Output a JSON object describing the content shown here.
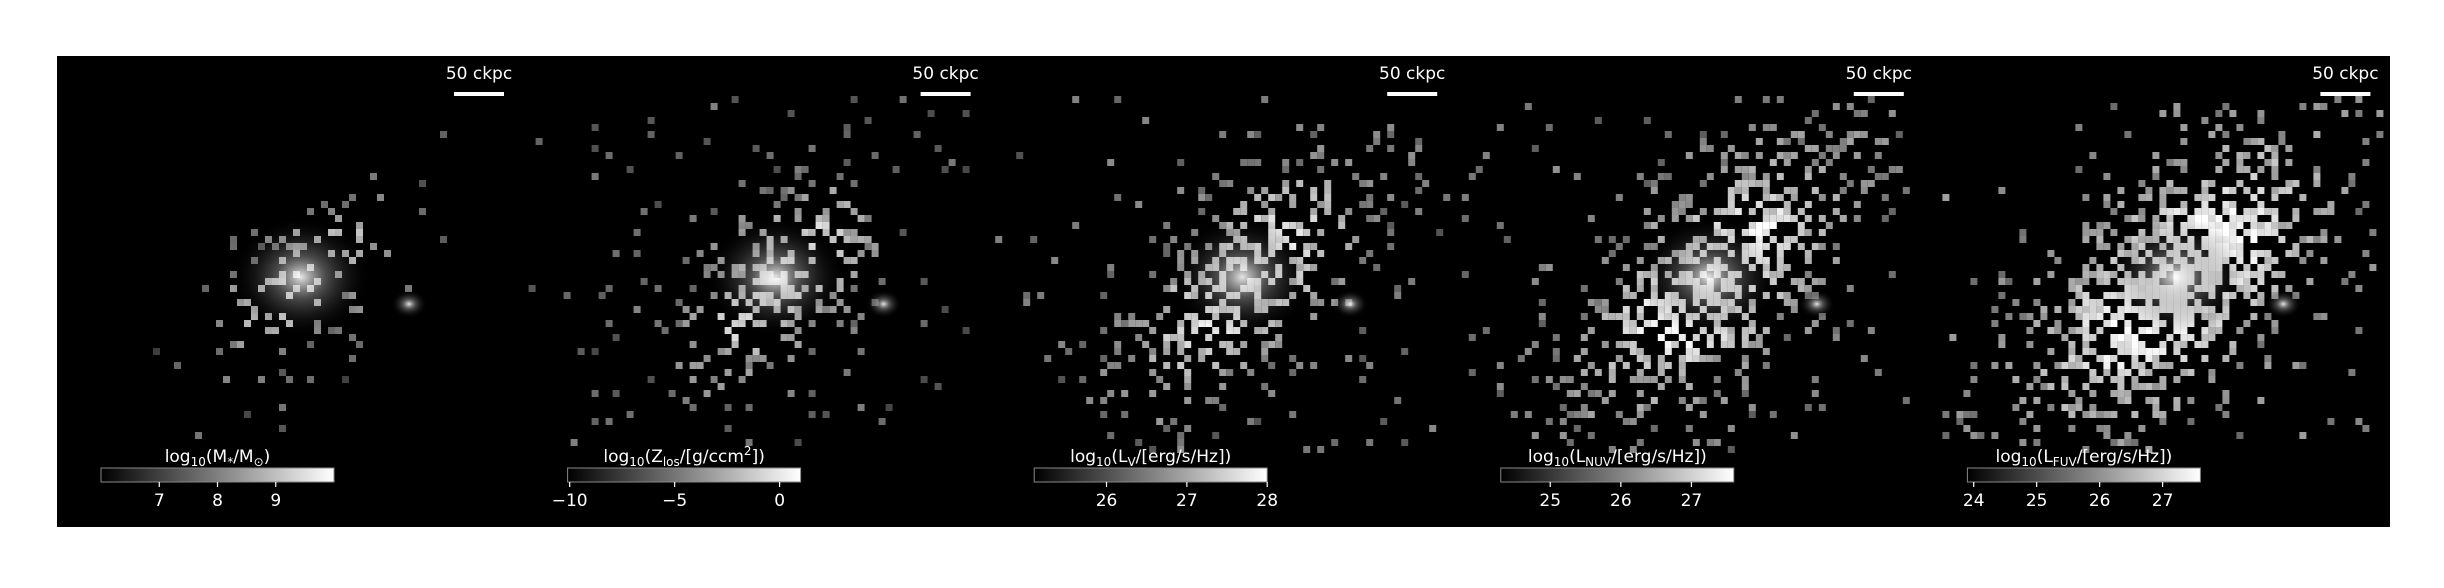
{
  "panels": [
    {
      "scale_bar": "50 ckpc",
      "colorbar": {
        "label": [
          "log",
          "10",
          "(M",
          "*",
          "/M",
          "⊙",
          ")"
        ],
        "label_scripts": [
          "base",
          "sub",
          "base",
          "sub",
          "base",
          "sub",
          "base"
        ],
        "lim": [
          6.0,
          10.0
        ],
        "ticks": [
          7,
          8,
          9
        ]
      }
    },
    {
      "scale_bar": "50 ckpc",
      "colorbar": {
        "label": [
          "log",
          "10",
          "(Z",
          "los",
          "/[g/ccm",
          "2",
          "])"
        ],
        "label_scripts": [
          "base",
          "sub",
          "base",
          "sub",
          "base",
          "sup",
          "base"
        ],
        "lim": [
          -10.1,
          1.0
        ],
        "ticks": [
          {
            "value": -10,
            "label": "−10"
          },
          {
            "value": -5,
            "label": "−5"
          },
          0
        ]
      }
    },
    {
      "scale_bar": "50 ckpc",
      "colorbar": {
        "label": [
          "log",
          "10",
          "(L",
          "V",
          "/[erg/s/Hz])"
        ],
        "label_scripts": [
          "base",
          "sub",
          "base",
          "sub",
          "base"
        ],
        "lim": [
          25.1,
          28.0
        ],
        "ticks": [
          26,
          27,
          28
        ]
      }
    },
    {
      "scale_bar": "50 ckpc",
      "colorbar": {
        "label": [
          "log",
          "10",
          "(L",
          "NUV",
          "/[erg/s/Hz])"
        ],
        "label_scripts": [
          "base",
          "sub",
          "base",
          "sub",
          "base"
        ],
        "lim": [
          24.3,
          27.6
        ],
        "ticks": [
          25,
          26,
          27
        ]
      }
    },
    {
      "scale_bar": "50 ckpc",
      "colorbar": {
        "label": [
          "log",
          "10",
          "(L",
          "FUV",
          "/[erg/s/Hz])"
        ],
        "label_scripts": [
          "base",
          "sub",
          "base",
          "sub",
          "base"
        ],
        "lim": [
          23.9,
          27.6
        ],
        "ticks": [
          24,
          25,
          26,
          27
        ]
      }
    }
  ]
}
